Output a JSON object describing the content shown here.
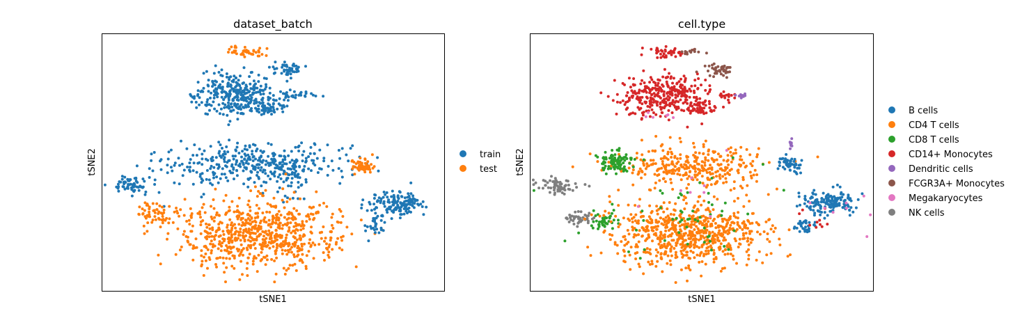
{
  "chart_data": [
    {
      "type": "scatter",
      "title": "dataset_batch",
      "xlabel": "tSNE1",
      "ylabel": "tSNE2",
      "xlim": [
        0,
        100
      ],
      "ylim": [
        0,
        100
      ],
      "legend_position": "right",
      "categories": [
        {
          "name": "train",
          "color": "#1f77b4"
        },
        {
          "name": "test",
          "color": "#ff7f0e"
        }
      ],
      "clusters": [
        {
          "category": "test",
          "cx": 42,
          "cy": 93,
          "sx": 3.0,
          "sy": 1.2,
          "n": 45
        },
        {
          "category": "train",
          "cx": 54,
          "cy": 86,
          "sx": 2.2,
          "sy": 1.4,
          "n": 45
        },
        {
          "category": "train",
          "cx": 39,
          "cy": 76,
          "sx": 6.0,
          "sy": 4.2,
          "n": 320
        },
        {
          "category": "train",
          "cx": 50,
          "cy": 71,
          "sx": 2.5,
          "sy": 1.5,
          "n": 45
        },
        {
          "category": "train",
          "cx": 57,
          "cy": 76,
          "sx": 3.5,
          "sy": 0.8,
          "n": 25
        },
        {
          "category": "train",
          "cx": 44,
          "cy": 49,
          "sx": 14.0,
          "sy": 4.0,
          "n": 360
        },
        {
          "category": "train",
          "cx": 56,
          "cy": 44,
          "sx": 3.0,
          "sy": 4.0,
          "n": 50
        },
        {
          "category": "train",
          "cx": 8,
          "cy": 41,
          "sx": 3.0,
          "sy": 1.6,
          "n": 65
        },
        {
          "category": "test",
          "cx": 16,
          "cy": 30,
          "sx": 3.0,
          "sy": 2.4,
          "n": 60
        },
        {
          "category": "test",
          "cx": 46,
          "cy": 22,
          "sx": 11.0,
          "sy": 6.5,
          "n": 700
        },
        {
          "category": "test",
          "cx": 76,
          "cy": 49,
          "sx": 1.8,
          "sy": 1.3,
          "n": 55
        },
        {
          "category": "train",
          "cx": 86,
          "cy": 34,
          "sx": 4.0,
          "sy": 2.2,
          "n": 150
        },
        {
          "category": "train",
          "cx": 80,
          "cy": 26,
          "sx": 1.8,
          "sy": 2.0,
          "n": 30
        }
      ]
    },
    {
      "type": "scatter",
      "title": "cell.type",
      "xlabel": "tSNE1",
      "ylabel": "tSNE2",
      "xlim": [
        0,
        100
      ],
      "ylim": [
        0,
        100
      ],
      "legend_position": "right",
      "categories": [
        {
          "name": "B cells",
          "color": "#1f77b4"
        },
        {
          "name": "CD4 T cells",
          "color": "#ff7f0e"
        },
        {
          "name": "CD8 T cells",
          "color": "#2ca02c"
        },
        {
          "name": "CD14+ Monocytes",
          "color": "#d62728"
        },
        {
          "name": "Dendritic cells",
          "color": "#9467bd"
        },
        {
          "name": "FCGR3A+ Monocytes",
          "color": "#8c564b"
        },
        {
          "name": "Megakaryocytes",
          "color": "#e377c2"
        },
        {
          "name": "NK cells",
          "color": "#7f7f7f"
        }
      ],
      "clusters": [
        {
          "category": "CD14+ Monocytes",
          "cx": 40,
          "cy": 93,
          "sx": 3.0,
          "sy": 1.3,
          "n": 45
        },
        {
          "category": "FCGR3A+ Monocytes",
          "cx": 47,
          "cy": 93,
          "sx": 1.5,
          "sy": 0.8,
          "n": 12
        },
        {
          "category": "FCGR3A+ Monocytes",
          "cx": 55,
          "cy": 86,
          "sx": 2.2,
          "sy": 1.4,
          "n": 45
        },
        {
          "category": "CD14+ Monocytes",
          "cx": 39,
          "cy": 76,
          "sx": 6.0,
          "sy": 4.2,
          "n": 320
        },
        {
          "category": "CD14+ Monocytes",
          "cx": 50,
          "cy": 71,
          "sx": 2.5,
          "sy": 1.5,
          "n": 45
        },
        {
          "category": "CD14+ Monocytes",
          "cx": 57,
          "cy": 76,
          "sx": 2.5,
          "sy": 0.8,
          "n": 18
        },
        {
          "category": "Dendritic cells",
          "cx": 62,
          "cy": 76,
          "sx": 1.0,
          "sy": 0.5,
          "n": 10
        },
        {
          "category": "Megakaryocytes",
          "cx": 38,
          "cy": 68,
          "sx": 3.0,
          "sy": 1.0,
          "n": 6
        },
        {
          "category": "CD4 T cells",
          "cx": 47,
          "cy": 48,
          "sx": 11.0,
          "sy": 4.0,
          "n": 330
        },
        {
          "category": "CD8 T cells",
          "cx": 25,
          "cy": 50,
          "sx": 3.0,
          "sy": 2.0,
          "n": 90
        },
        {
          "category": "NK cells",
          "cx": 8,
          "cy": 41,
          "sx": 3.0,
          "sy": 1.6,
          "n": 65
        },
        {
          "category": "NK cells",
          "cx": 14,
          "cy": 28,
          "sx": 2.0,
          "sy": 1.2,
          "n": 40
        },
        {
          "category": "CD8 T cells",
          "cx": 21,
          "cy": 27,
          "sx": 2.0,
          "sy": 1.2,
          "n": 40
        },
        {
          "category": "CD4 T cells",
          "cx": 46,
          "cy": 22,
          "sx": 11.0,
          "sy": 6.5,
          "n": 700
        },
        {
          "category": "CD8 T cells",
          "cx": 42,
          "cy": 28,
          "sx": 12.0,
          "sy": 8.0,
          "n": 60
        },
        {
          "category": "Megakaryocytes",
          "cx": 47,
          "cy": 40,
          "sx": 8.0,
          "sy": 8.0,
          "n": 8
        },
        {
          "category": "Dendritic cells",
          "cx": 76,
          "cy": 57,
          "sx": 0.2,
          "sy": 0.9,
          "n": 10
        },
        {
          "category": "B cells",
          "cx": 76,
          "cy": 49,
          "sx": 1.8,
          "sy": 1.3,
          "n": 55
        },
        {
          "category": "B cells",
          "cx": 87,
          "cy": 34,
          "sx": 4.0,
          "sy": 2.2,
          "n": 150
        },
        {
          "category": "B cells",
          "cx": 80,
          "cy": 26,
          "sx": 1.8,
          "sy": 2.0,
          "n": 30
        },
        {
          "category": "CD14+ Monocytes",
          "cx": 83,
          "cy": 27,
          "sx": 3.0,
          "sy": 3.0,
          "n": 10
        },
        {
          "category": "Megakaryocytes",
          "cx": 88,
          "cy": 32,
          "sx": 8.0,
          "sy": 4.0,
          "n": 8
        }
      ]
    }
  ]
}
